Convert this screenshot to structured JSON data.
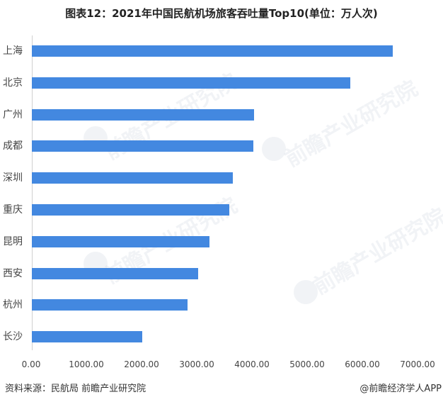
{
  "chart_data": {
    "type": "bar",
    "orientation": "horizontal",
    "title": "图表12：2021年中国民航机场旅客吞吐量Top10(单位：万人次)",
    "xlabel": "",
    "ylabel": "",
    "categories": [
      "上海",
      "北京",
      "广州",
      "成都",
      "深圳",
      "重庆",
      "昆明",
      "西安",
      "杭州",
      "长沙"
    ],
    "values": [
      6541.6,
      5769.0,
      4025.7,
      4011.7,
      3635.8,
      3574.7,
      3222.2,
      3017.4,
      2815.4,
      1997.9
    ],
    "xlim": [
      0,
      7000
    ],
    "x_ticks": [
      "0.00",
      "1000.00",
      "2000.00",
      "3000.00",
      "4000.00",
      "5000.00",
      "6000.00",
      "7000.00"
    ],
    "grid": false,
    "legend": null,
    "bar_color": "#4388e0"
  },
  "footer": {
    "source": "资料来源：民航局 前瞻产业研究院",
    "credit": "@前瞻经济学人APP"
  },
  "watermark": {
    "text": "前瞻产业研究院"
  }
}
